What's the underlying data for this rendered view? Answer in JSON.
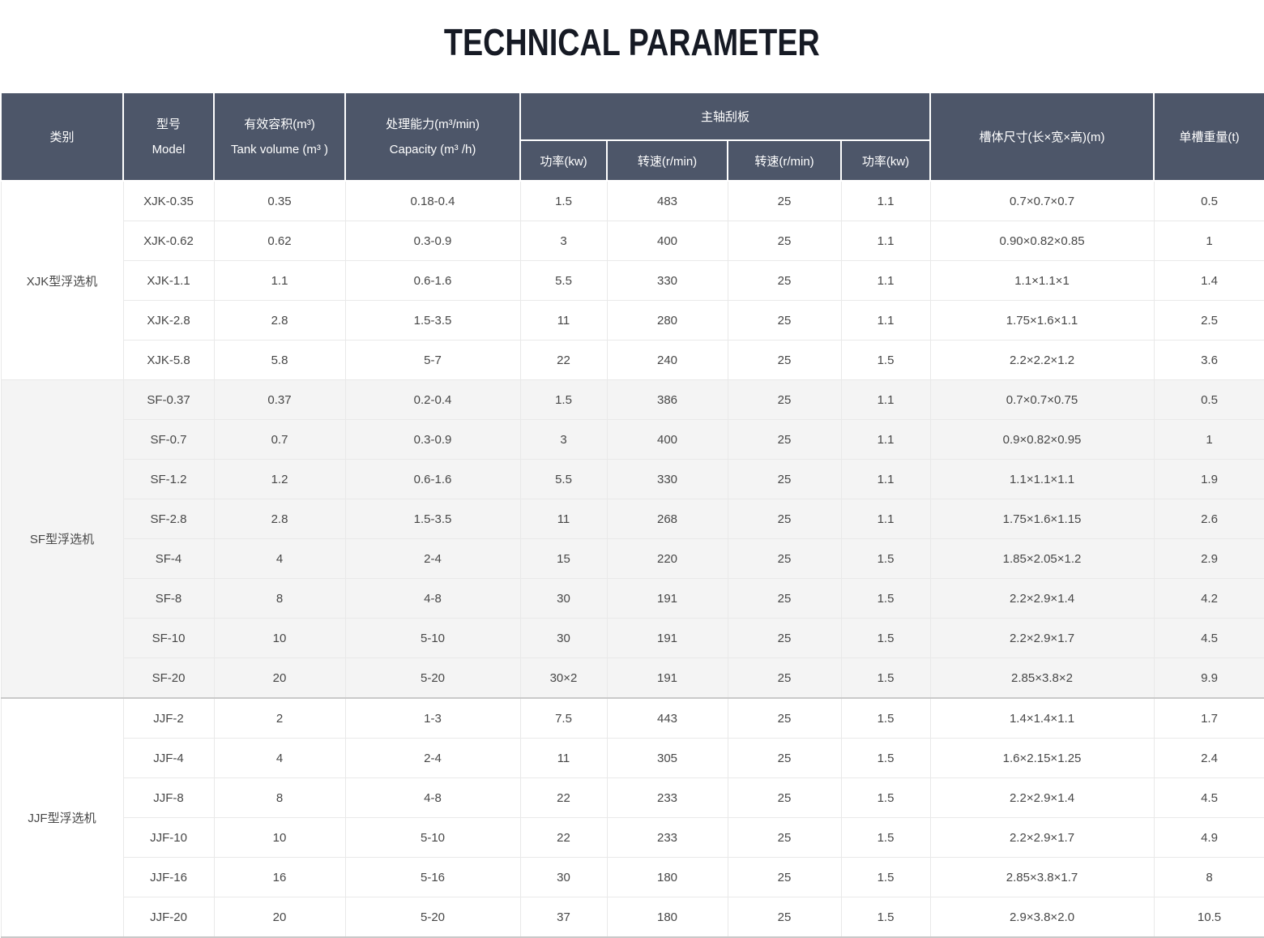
{
  "page": {
    "title": "TECHNICAL PARAMETER"
  },
  "colors": {
    "header_bg": "#4d5669",
    "header_text": "#ffffff",
    "row_bg": "#ffffff",
    "row_alt_bg": "#f4f4f4",
    "grid_border": "#e9e9e9",
    "section_border": "#c9c9c9",
    "body_text": "#474747",
    "title_text": "#161a24"
  },
  "table": {
    "header": {
      "category": "类别",
      "model_cn": "型号",
      "model_en": "Model",
      "tank_cn": "有效容积(m³)",
      "tank_en": "Tank volume (m³ )",
      "capacity_cn": "处理能力(m³/min)",
      "capacity_en": "Capacity (m³ /h)",
      "spindle_group": "主轴刮板",
      "sub": [
        "功率(kw)",
        "转速(r/min)",
        "转速(r/min)",
        "功率(kw)"
      ],
      "dimensions": "槽体尺寸(长×宽×高)(m)",
      "weight": "单槽重量(t)"
    },
    "sections": [
      {
        "category": "XJK型浮选机",
        "rows": [
          [
            "XJK-0.35",
            "0.35",
            "0.18-0.4",
            "1.5",
            "483",
            "25",
            "1.1",
            "0.7×0.7×0.7",
            "0.5"
          ],
          [
            "XJK-0.62",
            "0.62",
            "0.3-0.9",
            "3",
            "400",
            "25",
            "1.1",
            "0.90×0.82×0.85",
            "1"
          ],
          [
            "XJK-1.1",
            "1.1",
            "0.6-1.6",
            "5.5",
            "330",
            "25",
            "1.1",
            "1.1×1.1×1",
            "1.4"
          ],
          [
            "XJK-2.8",
            "2.8",
            "1.5-3.5",
            "11",
            "280",
            "25",
            "1.1",
            "1.75×1.6×1.1",
            "2.5"
          ],
          [
            "XJK-5.8",
            "5.8",
            "5-7",
            "22",
            "240",
            "25",
            "1.5",
            "2.2×2.2×1.2",
            "3.6"
          ]
        ]
      },
      {
        "category": "SF型浮选机",
        "rows": [
          [
            "SF-0.37",
            "0.37",
            "0.2-0.4",
            "1.5",
            "386",
            "25",
            "1.1",
            "0.7×0.7×0.75",
            "0.5"
          ],
          [
            "SF-0.7",
            "0.7",
            "0.3-0.9",
            "3",
            "400",
            "25",
            "1.1",
            "0.9×0.82×0.95",
            "1"
          ],
          [
            "SF-1.2",
            "1.2",
            "0.6-1.6",
            "5.5",
            "330",
            "25",
            "1.1",
            "1.1×1.1×1.1",
            "1.9"
          ],
          [
            "SF-2.8",
            "2.8",
            "1.5-3.5",
            "11",
            "268",
            "25",
            "1.1",
            "1.75×1.6×1.15",
            "2.6"
          ],
          [
            "SF-4",
            "4",
            "2-4",
            "15",
            "220",
            "25",
            "1.5",
            "1.85×2.05×1.2",
            "2.9"
          ],
          [
            "SF-8",
            "8",
            "4-8",
            "30",
            "191",
            "25",
            "1.5",
            "2.2×2.9×1.4",
            "4.2"
          ],
          [
            "SF-10",
            "10",
            "5-10",
            "30",
            "191",
            "25",
            "1.5",
            "2.2×2.9×1.7",
            "4.5"
          ],
          [
            "SF-20",
            "20",
            "5-20",
            "30×2",
            "191",
            "25",
            "1.5",
            "2.85×3.8×2",
            "9.9"
          ]
        ]
      },
      {
        "category": "JJF型浮选机",
        "rows": [
          [
            "JJF-2",
            "2",
            "1-3",
            "7.5",
            "443",
            "25",
            "1.5",
            "1.4×1.4×1.1",
            "1.7"
          ],
          [
            "JJF-4",
            "4",
            "2-4",
            "11",
            "305",
            "25",
            "1.5",
            "1.6×2.15×1.25",
            "2.4"
          ],
          [
            "JJF-8",
            "8",
            "4-8",
            "22",
            "233",
            "25",
            "1.5",
            "2.2×2.9×1.4",
            "4.5"
          ],
          [
            "JJF-10",
            "10",
            "5-10",
            "22",
            "233",
            "25",
            "1.5",
            "2.2×2.9×1.7",
            "4.9"
          ],
          [
            "JJF-16",
            "16",
            "5-16",
            "30",
            "180",
            "25",
            "1.5",
            "2.85×3.8×1.7",
            "8"
          ],
          [
            "JJF-20",
            "20",
            "5-20",
            "37",
            "180",
            "25",
            "1.5",
            "2.9×3.8×2.0",
            "10.5"
          ]
        ]
      }
    ]
  }
}
